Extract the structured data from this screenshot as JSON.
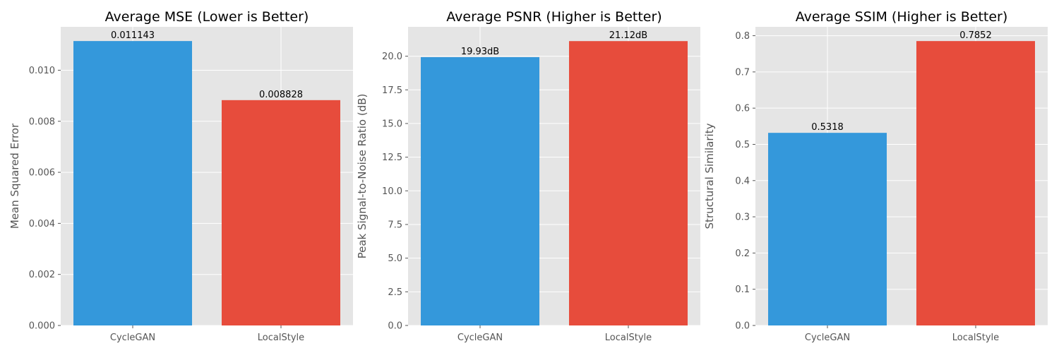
{
  "chart_data": [
    {
      "type": "bar",
      "title": "Average MSE (Lower is Better)",
      "xlabel": "",
      "ylabel": "Mean Squared Error",
      "categories": [
        "CycleGAN",
        "LocalStyle"
      ],
      "values": [
        0.011143,
        0.008828
      ],
      "data_labels": [
        "0.011143",
        "0.008828"
      ],
      "colors": [
        "#3498db",
        "#e74c3c"
      ],
      "ylim": [
        0,
        0.0117
      ],
      "yticks": [
        0.0,
        0.002,
        0.004,
        0.006,
        0.008,
        0.01
      ],
      "ytick_labels": [
        "0.000",
        "0.002",
        "0.004",
        "0.006",
        "0.008",
        "0.010"
      ],
      "grid": true
    },
    {
      "type": "bar",
      "title": "Average PSNR (Higher is Better)",
      "xlabel": "",
      "ylabel": "Peak Signal-to-Noise Ratio (dB)",
      "categories": [
        "CycleGAN",
        "LocalStyle"
      ],
      "values": [
        19.93,
        21.12
      ],
      "data_labels": [
        "19.93dB",
        "21.12dB"
      ],
      "colors": [
        "#3498db",
        "#e74c3c"
      ],
      "ylim": [
        0,
        22.18
      ],
      "yticks": [
        0.0,
        2.5,
        5.0,
        7.5,
        10.0,
        12.5,
        15.0,
        17.5,
        20.0
      ],
      "ytick_labels": [
        "0.0",
        "2.5",
        "5.0",
        "7.5",
        "10.0",
        "12.5",
        "15.0",
        "17.5",
        "20.0"
      ],
      "grid": true
    },
    {
      "type": "bar",
      "title": "Average SSIM (Higher is Better)",
      "xlabel": "",
      "ylabel": "Structural Similarity",
      "categories": [
        "CycleGAN",
        "LocalStyle"
      ],
      "values": [
        0.5318,
        0.7852
      ],
      "data_labels": [
        "0.5318",
        "0.7852"
      ],
      "colors": [
        "#3498db",
        "#e74c3c"
      ],
      "ylim": [
        0,
        0.8245
      ],
      "yticks": [
        0.0,
        0.1,
        0.2,
        0.3,
        0.4,
        0.5,
        0.6,
        0.7,
        0.8
      ],
      "ytick_labels": [
        "0.0",
        "0.1",
        "0.2",
        "0.3",
        "0.4",
        "0.5",
        "0.6",
        "0.7",
        "0.8"
      ],
      "grid": true
    }
  ]
}
